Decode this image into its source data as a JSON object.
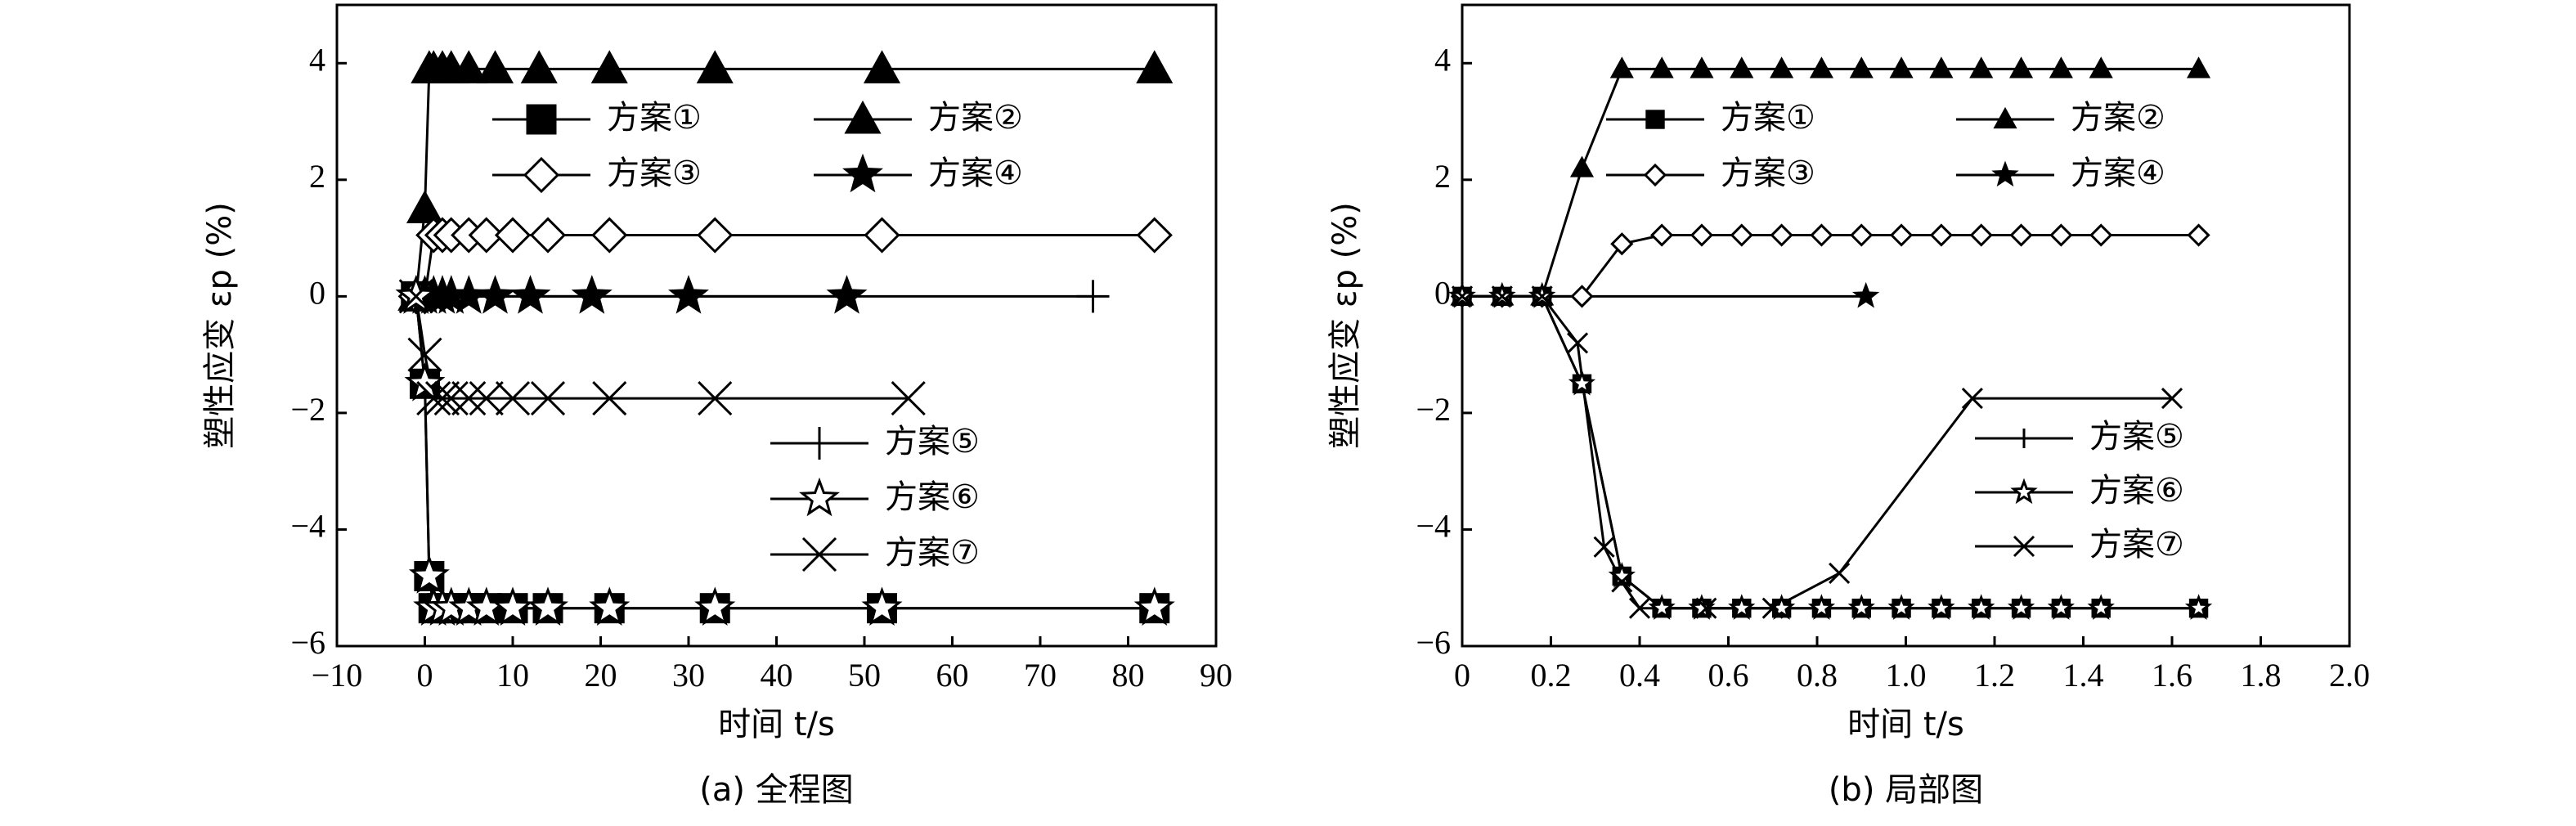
{
  "chart_data": [
    {
      "type": "line",
      "caption": "(a) 全程图",
      "x_label": "时间 t/s",
      "y_label": "塑性应变 εp (%)",
      "xlim": [
        -10,
        90
      ],
      "ylim": [
        -6,
        5
      ],
      "xticks": [
        {
          "value": -10,
          "label": "−10"
        },
        0,
        10,
        20,
        30,
        40,
        50,
        60,
        70,
        80,
        90
      ],
      "yticks": [
        {
          "value": -6,
          "label": "−6"
        },
        {
          "value": -4,
          "label": "−4"
        },
        {
          "value": -2,
          "label": "−2"
        },
        0,
        2,
        4
      ],
      "series": [
        {
          "name": "方案①",
          "color": "#000000",
          "marker": "square",
          "fill": true,
          "x": [
            -1,
            0,
            0.5,
            1,
            2,
            3,
            5,
            7,
            10,
            14,
            21,
            33,
            52,
            83
          ],
          "values": [
            0,
            -1.5,
            -4.8,
            -5.35,
            -5.35,
            -5.35,
            -5.35,
            -5.35,
            -5.35,
            -5.35,
            -5.35,
            -5.35,
            -5.35,
            -5.35
          ]
        },
        {
          "name": "方案②",
          "color": "#000000",
          "marker": "triangle",
          "fill": true,
          "x": [
            -1,
            0,
            0.5,
            1,
            2,
            3,
            5,
            8,
            13,
            21,
            33,
            52,
            83
          ],
          "values": [
            0,
            1.5,
            3.9,
            3.9,
            3.9,
            3.9,
            3.9,
            3.9,
            3.9,
            3.9,
            3.9,
            3.9,
            3.9
          ]
        },
        {
          "name": "方案③",
          "color": "#000000",
          "marker": "diamond",
          "fill": false,
          "x": [
            -1,
            0,
            1,
            2,
            3,
            5,
            7,
            10,
            14,
            21,
            33,
            52,
            83
          ],
          "values": [
            0,
            0,
            1.05,
            1.05,
            1.05,
            1.05,
            1.05,
            1.05,
            1.05,
            1.05,
            1.05,
            1.05,
            1.05
          ]
        },
        {
          "name": "方案④",
          "color": "#000000",
          "marker": "star",
          "fill": true,
          "x": [
            -1,
            0,
            1,
            2,
            3,
            5,
            8,
            12,
            19,
            30,
            48
          ],
          "values": [
            0,
            0,
            0,
            0,
            0,
            0,
            0,
            0,
            0,
            0,
            0
          ]
        },
        {
          "name": "方案⑤",
          "color": "#000000",
          "marker": "plus",
          "fill": false,
          "x": [
            0,
            76
          ],
          "values": [
            0,
            0
          ]
        },
        {
          "name": "方案⑥",
          "color": "#000000",
          "marker": "star",
          "fill": false,
          "x": [
            -1,
            0,
            0.5,
            1,
            2,
            3,
            5,
            7,
            10,
            14,
            21,
            33,
            52,
            83
          ],
          "values": [
            0,
            -1.5,
            -4.8,
            -5.35,
            -5.35,
            -5.35,
            -5.35,
            -5.35,
            -5.35,
            -5.35,
            -5.35,
            -5.35,
            -5.35,
            -5.35
          ]
        },
        {
          "name": "方案⑦",
          "color": "#000000",
          "marker": "cross",
          "fill": false,
          "x": [
            -1,
            0,
            1,
            2,
            3,
            5,
            7,
            10,
            14,
            21,
            33,
            55
          ],
          "values": [
            0,
            -1,
            -1.75,
            -1.75,
            -1.75,
            -1.75,
            -1.75,
            -1.75,
            -1.75,
            -1.75,
            -1.75,
            -1.75
          ]
        }
      ]
    },
    {
      "type": "line",
      "caption": "(b) 局部图",
      "x_label": "时间 t/s",
      "y_label": "塑性应变 εp (%)",
      "xlim": [
        0,
        2
      ],
      "ylim": [
        -6,
        5
      ],
      "xticks": [
        0,
        0.2,
        0.4,
        0.6,
        0.8,
        {
          "value": 1,
          "label": "1.0"
        },
        1.2,
        1.4,
        1.6,
        1.8,
        {
          "value": 2,
          "label": "2.0"
        }
      ],
      "yticks": [
        {
          "value": -6,
          "label": "−6"
        },
        {
          "value": -4,
          "label": "−4"
        },
        {
          "value": -2,
          "label": "−2"
        },
        0,
        2,
        4
      ],
      "series": [
        {
          "name": "方案①",
          "color": "#000000",
          "marker": "square",
          "fill": true,
          "x": [
            0,
            0.09,
            0.18,
            0.27,
            0.36,
            0.45,
            0.54,
            0.63,
            0.72,
            0.81,
            0.9,
            0.99,
            1.08,
            1.17,
            1.26,
            1.35,
            1.44,
            1.66
          ],
          "values": [
            0,
            0,
            0,
            -1.5,
            -4.8,
            -5.35,
            -5.35,
            -5.35,
            -5.35,
            -5.35,
            -5.35,
            -5.35,
            -5.35,
            -5.35,
            -5.35,
            -5.35,
            -5.35,
            -5.35
          ]
        },
        {
          "name": "方案②",
          "color": "#000000",
          "marker": "triangle",
          "fill": true,
          "x": [
            0,
            0.09,
            0.18,
            0.27,
            0.36,
            0.45,
            0.54,
            0.63,
            0.72,
            0.81,
            0.9,
            0.99,
            1.08,
            1.17,
            1.26,
            1.35,
            1.44,
            1.66
          ],
          "values": [
            0,
            0,
            0,
            2.2,
            3.9,
            3.9,
            3.9,
            3.9,
            3.9,
            3.9,
            3.9,
            3.9,
            3.9,
            3.9,
            3.9,
            3.9,
            3.9,
            3.9
          ]
        },
        {
          "name": "方案③",
          "color": "#000000",
          "marker": "diamond",
          "fill": false,
          "x": [
            0,
            0.09,
            0.18,
            0.27,
            0.36,
            0.45,
            0.54,
            0.63,
            0.72,
            0.81,
            0.9,
            0.99,
            1.08,
            1.17,
            1.26,
            1.35,
            1.44,
            1.66
          ],
          "values": [
            0,
            0,
            0,
            0,
            0.9,
            1.05,
            1.05,
            1.05,
            1.05,
            1.05,
            1.05,
            1.05,
            1.05,
            1.05,
            1.05,
            1.05,
            1.05,
            1.05
          ]
        },
        {
          "name": "方案④",
          "color": "#000000",
          "marker": "star",
          "fill": true,
          "x": [
            0,
            0.09,
            0.18,
            0.91
          ],
          "values": [
            0,
            0,
            0,
            0
          ]
        },
        {
          "name": "方案⑤",
          "color": "#000000",
          "marker": "plus",
          "fill": false,
          "x": [
            0,
            0.09,
            0.18
          ],
          "values": [
            0,
            0,
            0
          ]
        },
        {
          "name": "方案⑥",
          "color": "#000000",
          "marker": "star",
          "fill": false,
          "x": [
            0,
            0.09,
            0.18,
            0.27,
            0.36,
            0.45,
            0.54,
            0.63,
            0.72,
            0.81,
            0.9,
            0.99,
            1.08,
            1.17,
            1.26,
            1.35,
            1.44,
            1.66
          ],
          "values": [
            0,
            0,
            0,
            -1.5,
            -4.8,
            -5.35,
            -5.35,
            -5.35,
            -5.35,
            -5.35,
            -5.35,
            -5.35,
            -5.35,
            -5.35,
            -5.35,
            -5.35,
            -5.35,
            -5.35
          ]
        },
        {
          "name": "方案⑦",
          "color": "#000000",
          "marker": "cross",
          "fill": false,
          "x": [
            0,
            0.09,
            0.18,
            0.26,
            0.32,
            0.36,
            0.4,
            0.55,
            0.7,
            0.85,
            1.15,
            1.6
          ],
          "values": [
            0,
            0,
            0,
            -0.8,
            -4.3,
            -4.9,
            -5.35,
            -5.35,
            -5.35,
            -4.75,
            -1.75,
            -1.75
          ]
        }
      ]
    }
  ]
}
